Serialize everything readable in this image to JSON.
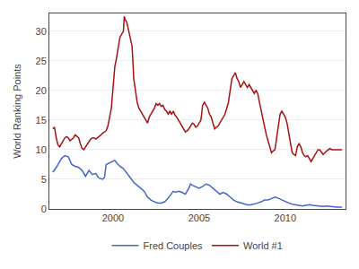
{
  "chart_data": {
    "type": "line",
    "ylabel": "World Ranking Points",
    "xlim": [
      1996.3,
      2013.5
    ],
    "xticks": [
      2000,
      2005,
      2010
    ],
    "ylim": [
      0,
      33
    ],
    "yticks": [
      0,
      5,
      10,
      15,
      20,
      25,
      30
    ],
    "grid": "y",
    "legend": "bottom",
    "series": [
      {
        "name": "Fred Couples",
        "color": "#4466cc",
        "x": [
          1996.5,
          1996.7,
          1997.0,
          1997.2,
          1997.4,
          1997.6,
          1997.8,
          1998.0,
          1998.2,
          1998.4,
          1998.5,
          1998.6,
          1998.8,
          1999.0,
          1999.1,
          1999.2,
          1999.4,
          1999.5,
          1999.6,
          1999.8,
          2000.0,
          2000.1,
          2000.2,
          2000.4,
          2000.6,
          2000.8,
          2001.0,
          2001.2,
          2001.4,
          2001.6,
          2001.8,
          2002.0,
          2002.2,
          2002.4,
          2002.6,
          2002.8,
          2003.0,
          2003.2,
          2003.4,
          2003.5,
          2003.6,
          2003.8,
          2004.0,
          2004.2,
          2004.4,
          2004.5,
          2004.6,
          2004.8,
          2005.0,
          2005.2,
          2005.4,
          2005.6,
          2005.8,
          2006.0,
          2006.2,
          2006.4,
          2006.6,
          2006.8,
          2007.0,
          2007.2,
          2007.4,
          2007.6,
          2007.8,
          2008.0,
          2008.2,
          2008.4,
          2008.6,
          2008.8,
          2009.0,
          2009.2,
          2009.4,
          2009.6,
          2009.8,
          2010.0,
          2010.2,
          2010.4,
          2010.6,
          2010.8,
          2011.0,
          2011.2,
          2011.4,
          2011.6,
          2011.8,
          2012.0,
          2012.2,
          2012.4,
          2012.6,
          2012.8,
          2013.0,
          2013.3
        ],
        "values": [
          6.2,
          7.0,
          8.5,
          9.0,
          8.8,
          7.5,
          7.2,
          7.0,
          6.5,
          5.5,
          6.0,
          6.5,
          5.8,
          6.0,
          5.5,
          5.2,
          5.0,
          5.3,
          7.5,
          7.8,
          8.0,
          8.2,
          7.8,
          7.2,
          6.8,
          6.0,
          5.2,
          4.5,
          4.0,
          3.5,
          3.0,
          2.0,
          1.5,
          1.2,
          1.0,
          1.0,
          1.2,
          1.8,
          2.5,
          3.0,
          2.8,
          3.0,
          2.8,
          2.5,
          3.5,
          4.2,
          4.0,
          3.8,
          3.5,
          3.8,
          4.2,
          4.0,
          3.5,
          3.0,
          2.5,
          2.8,
          2.5,
          2.0,
          1.5,
          1.2,
          1.0,
          0.8,
          0.7,
          0.7,
          0.8,
          1.0,
          1.2,
          1.5,
          1.5,
          1.8,
          2.0,
          1.8,
          1.5,
          1.3,
          1.0,
          0.8,
          0.7,
          0.6,
          0.5,
          0.6,
          0.7,
          0.6,
          0.5,
          0.4,
          0.4,
          0.5,
          0.4,
          0.4,
          0.3,
          0.3
        ]
      },
      {
        "name": "World #1",
        "color": "#aa1111",
        "x": [
          1996.5,
          1996.6,
          1996.7,
          1996.8,
          1996.9,
          1997.0,
          1997.1,
          1997.2,
          1997.3,
          1997.4,
          1997.5,
          1997.6,
          1997.7,
          1997.8,
          1997.9,
          1998.0,
          1998.1,
          1998.2,
          1998.3,
          1998.4,
          1998.5,
          1998.6,
          1998.7,
          1998.8,
          1998.9,
          1999.0,
          1999.1,
          1999.2,
          1999.3,
          1999.4,
          1999.5,
          1999.6,
          1999.7,
          1999.8,
          1999.9,
          2000.0,
          2000.1,
          2000.2,
          2000.3,
          2000.4,
          2000.5,
          2000.6,
          2000.65,
          2000.7,
          2000.8,
          2000.9,
          2001.0,
          2001.1,
          2001.15,
          2001.2,
          2001.3,
          2001.4,
          2001.5,
          2001.6,
          2001.7,
          2001.8,
          2001.9,
          2002.0,
          2002.1,
          2002.2,
          2002.3,
          2002.4,
          2002.5,
          2002.6,
          2002.7,
          2002.8,
          2002.9,
          2003.0,
          2003.1,
          2003.2,
          2003.3,
          2003.4,
          2003.5,
          2003.6,
          2003.7,
          2003.8,
          2003.9,
          2004.0,
          2004.1,
          2004.2,
          2004.3,
          2004.4,
          2004.5,
          2004.6,
          2004.7,
          2004.8,
          2004.9,
          2005.0,
          2005.1,
          2005.2,
          2005.3,
          2005.4,
          2005.5,
          2005.6,
          2005.7,
          2005.8,
          2005.9,
          2006.0,
          2006.1,
          2006.2,
          2006.3,
          2006.4,
          2006.5,
          2006.6,
          2006.7,
          2006.8,
          2006.9,
          2007.0,
          2007.1,
          2007.2,
          2007.3,
          2007.4,
          2007.5,
          2007.6,
          2007.7,
          2007.8,
          2007.9,
          2008.0,
          2008.1,
          2008.2,
          2008.3,
          2008.4,
          2008.5,
          2008.6,
          2008.7,
          2008.8,
          2008.9,
          2009.0,
          2009.1,
          2009.2,
          2009.3,
          2009.4,
          2009.5,
          2009.6,
          2009.7,
          2009.8,
          2009.9,
          2010.0,
          2010.1,
          2010.2,
          2010.3,
          2010.4,
          2010.5,
          2010.6,
          2010.7,
          2010.8,
          2010.9,
          2011.0,
          2011.1,
          2011.2,
          2011.3,
          2011.4,
          2011.5,
          2011.6,
          2011.7,
          2011.8,
          2011.9,
          2012.0,
          2012.1,
          2012.2,
          2012.3,
          2012.4,
          2012.5,
          2012.6,
          2012.7,
          2012.8,
          2012.9,
          2013.0,
          2013.3
        ],
        "values": [
          13.5,
          13.8,
          12.0,
          10.8,
          10.5,
          11.0,
          11.5,
          12.0,
          12.2,
          12.0,
          11.5,
          11.8,
          12.0,
          12.5,
          12.3,
          12.0,
          11.0,
          10.2,
          10.0,
          10.5,
          11.0,
          11.5,
          11.8,
          12.0,
          12.0,
          11.8,
          12.0,
          12.2,
          12.5,
          12.8,
          13.0,
          13.2,
          14.0,
          15.5,
          17.0,
          20.5,
          24.0,
          25.5,
          27.0,
          29.0,
          29.5,
          30.0,
          32.5,
          32.0,
          31.5,
          30.0,
          29.0,
          27.5,
          25.0,
          22.0,
          20.0,
          18.0,
          17.0,
          16.5,
          15.8,
          15.5,
          15.0,
          14.5,
          15.5,
          16.0,
          16.5,
          17.0,
          17.8,
          17.5,
          17.8,
          17.3,
          17.5,
          16.8,
          16.5,
          16.0,
          16.5,
          16.0,
          16.5,
          15.8,
          15.5,
          15.0,
          14.5,
          14.0,
          13.5,
          13.0,
          13.2,
          13.5,
          14.0,
          14.5,
          14.3,
          13.8,
          14.0,
          14.5,
          15.0,
          17.5,
          18.0,
          17.5,
          17.0,
          16.0,
          15.5,
          14.5,
          13.5,
          13.8,
          14.0,
          14.5,
          15.0,
          15.5,
          16.0,
          17.0,
          18.0,
          20.0,
          22.0,
          22.5,
          23.0,
          22.0,
          21.5,
          20.5,
          21.0,
          21.5,
          21.0,
          20.5,
          21.0,
          20.5,
          20.0,
          19.5,
          20.0,
          19.5,
          18.0,
          16.5,
          15.0,
          13.5,
          12.5,
          11.5,
          10.5,
          9.5,
          9.8,
          10.0,
          12.0,
          14.0,
          16.0,
          16.5,
          16.0,
          15.5,
          14.5,
          13.0,
          11.0,
          9.5,
          9.2,
          9.0,
          10.5,
          11.0,
          10.5,
          9.5,
          9.0,
          8.8,
          9.0,
          8.5,
          8.0,
          8.5,
          9.0,
          9.5,
          10.0,
          10.0,
          9.5,
          9.2,
          9.5,
          9.8,
          10.0,
          10.2,
          10.0,
          10.0,
          10.0,
          10.0,
          10.0
        ]
      }
    ]
  }
}
